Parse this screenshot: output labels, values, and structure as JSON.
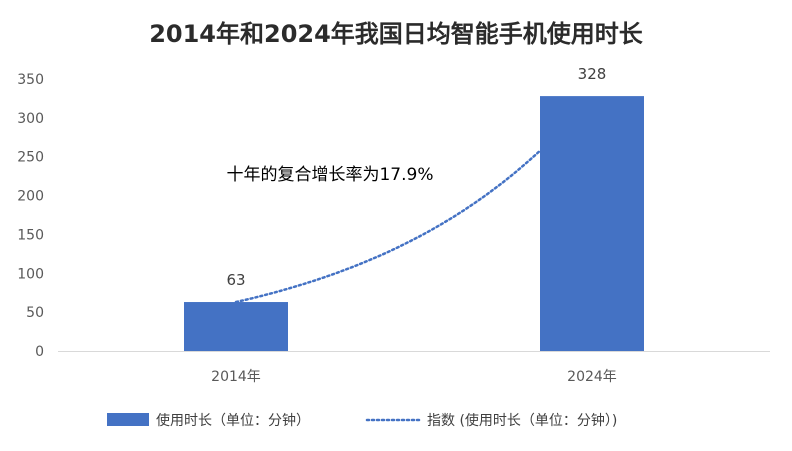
{
  "chart_data": {
    "type": "bar",
    "title": "2014年和2024年我国日均智能手机使用时长",
    "categories": [
      "2014年",
      "2024年"
    ],
    "values": [
      63,
      328
    ],
    "data_labels": [
      "63",
      "328"
    ],
    "ylim": [
      0,
      350
    ],
    "yticks": [
      0,
      50,
      100,
      150,
      200,
      250,
      300,
      350
    ],
    "ytick_labels": [
      "0",
      "50",
      "100",
      "150",
      "200",
      "250",
      "300",
      "350"
    ],
    "grid": false,
    "bar_color": "#4472C4",
    "trendline": {
      "type": "exponential",
      "style": "dotted",
      "color": "#4472C4",
      "label": "指数 (使用时长（单位：分钟）)"
    },
    "annotation": "十年的复合增长率为17.9%",
    "legend": {
      "placement": "bottom",
      "entries": [
        "使用时长（单位：分钟）",
        "指数 (使用时长（单位：分钟）)"
      ]
    }
  }
}
